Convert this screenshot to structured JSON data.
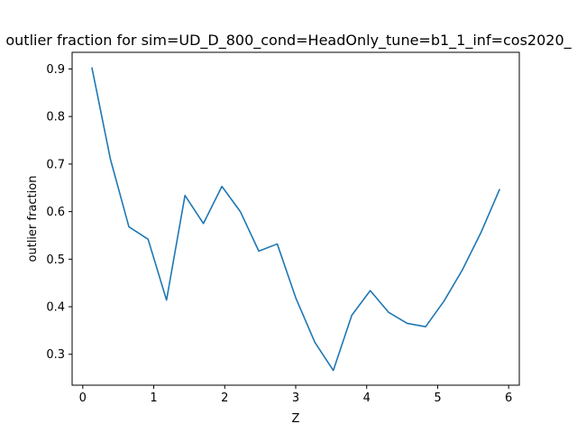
{
  "chart_data": {
    "type": "line",
    "title": "outlier fraction for sim=UD_D_800_cond=HeadOnly_tune=b1_1_inf=cos2020_",
    "xlabel": "Z",
    "ylabel": "outlier fraction",
    "xlim": [
      -0.15,
      6.15
    ],
    "ylim": [
      0.235,
      0.935
    ],
    "xticks": [
      0,
      1,
      2,
      3,
      4,
      5,
      6
    ],
    "yticks": [
      0.3,
      0.4,
      0.5,
      0.6,
      0.7,
      0.8,
      0.9
    ],
    "grid": false,
    "legend": "none",
    "series": [
      {
        "color": "#1f77b4",
        "x": [
          0.13,
          0.39,
          0.65,
          0.92,
          1.18,
          1.44,
          1.7,
          1.96,
          2.22,
          2.48,
          2.74,
          3.0,
          3.27,
          3.53,
          3.79,
          4.05,
          4.31,
          4.57,
          4.83,
          5.09,
          5.35,
          5.61,
          5.87
        ],
        "values": [
          0.902,
          0.71,
          0.568,
          0.542,
          0.414,
          0.634,
          0.575,
          0.653,
          0.6,
          0.517,
          0.532,
          0.419,
          0.325,
          0.266,
          0.382,
          0.434,
          0.388,
          0.365,
          0.358,
          0.412,
          0.478,
          0.556,
          0.646
        ]
      }
    ]
  }
}
